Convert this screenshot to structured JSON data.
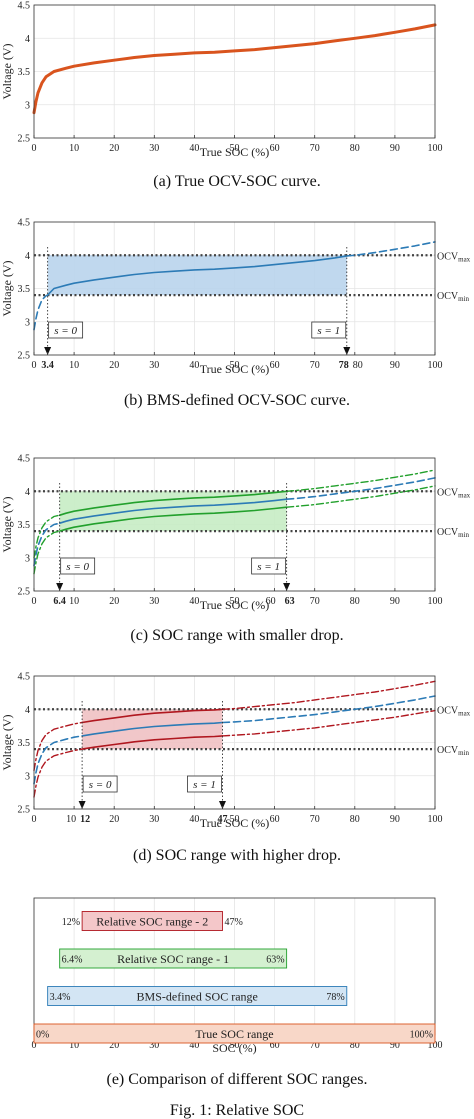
{
  "chart_data": [
    {
      "id": "a",
      "type": "line",
      "caption": "(a) True OCV-SOC curve.",
      "xlabel": "True SOC (%)",
      "ylabel": "Voltage (V)",
      "xlim": [
        0,
        100
      ],
      "ylim": [
        2.5,
        4.5
      ],
      "xticks": [
        "0",
        "10",
        "20",
        "30",
        "40",
        "50",
        "60",
        "70",
        "80",
        "90",
        "100"
      ],
      "yticks": [
        "2.5",
        "3",
        "3.5",
        "4",
        "4.5"
      ],
      "grid": true,
      "series": [
        {
          "style": "solid",
          "color": "#d9541e",
          "width": 3,
          "x": [
            0,
            0.5,
            1,
            2,
            3,
            5,
            8,
            10,
            15,
            20,
            25,
            30,
            35,
            40,
            45,
            50,
            55,
            60,
            65,
            70,
            75,
            80,
            85,
            90,
            95,
            100
          ],
          "y": [
            2.88,
            3.05,
            3.18,
            3.33,
            3.42,
            3.5,
            3.55,
            3.58,
            3.63,
            3.67,
            3.71,
            3.74,
            3.76,
            3.78,
            3.79,
            3.81,
            3.83,
            3.86,
            3.89,
            3.92,
            3.96,
            4.0,
            4.04,
            4.09,
            4.14,
            4.2
          ]
        }
      ]
    },
    {
      "id": "b",
      "type": "line",
      "caption": "(b) BMS-defined OCV-SOC curve.",
      "xlabel": "True SOC (%)",
      "ylabel": "Voltage (V)",
      "xlim": [
        0,
        100
      ],
      "ylim": [
        2.5,
        4.5
      ],
      "xticks": [
        "0",
        "3.4",
        "10",
        "20",
        "30",
        "40",
        "50",
        "60",
        "70",
        "78",
        "80",
        "90",
        "100"
      ],
      "xtick_values": [
        0,
        3.4,
        10,
        20,
        30,
        40,
        50,
        60,
        70,
        78,
        80,
        90,
        100
      ],
      "bold_ticks": [
        "3.4",
        "78"
      ],
      "yticks": [
        "2.5",
        "3",
        "3.5",
        "4",
        "4.5"
      ],
      "grid": true,
      "ocv_max_label": "OCVₘₐₓ",
      "ocv_min_label": "OCVₘᵢₙ",
      "ocv_max": 4.0,
      "ocv_min": 3.4,
      "shade": {
        "x": [
          3.4,
          78
        ],
        "y": [
          3.4,
          4.0
        ],
        "color": "#b9d4ec"
      },
      "markers": [
        {
          "label": "s = 0",
          "x": 3.4,
          "box_side": "right"
        },
        {
          "label": "s = 1",
          "x": 78,
          "box_side": "left"
        }
      ],
      "series": [
        {
          "style": "solid",
          "color": "#2c7bb6",
          "width": 1.6,
          "x": [
            3.4,
            5,
            8,
            10,
            15,
            20,
            25,
            30,
            35,
            40,
            45,
            50,
            55,
            60,
            65,
            70,
            75,
            78
          ],
          "y": [
            3.4,
            3.5,
            3.55,
            3.58,
            3.63,
            3.67,
            3.71,
            3.74,
            3.76,
            3.78,
            3.79,
            3.81,
            3.83,
            3.86,
            3.89,
            3.92,
            3.96,
            3.99
          ]
        },
        {
          "style": "dashed",
          "color": "#2c7bb6",
          "width": 1.6,
          "x": [
            0,
            0.5,
            1,
            2,
            3,
            3.4
          ],
          "y": [
            2.88,
            3.05,
            3.18,
            3.33,
            3.39,
            3.4
          ]
        },
        {
          "style": "dashed",
          "color": "#2c7bb6",
          "width": 1.6,
          "x": [
            78,
            80,
            85,
            90,
            95,
            100
          ],
          "y": [
            3.99,
            4.0,
            4.04,
            4.09,
            4.14,
            4.2
          ]
        }
      ]
    },
    {
      "id": "c",
      "type": "line",
      "caption": "(c) SOC range with smaller drop.",
      "xlabel": "True SOC (%)",
      "ylabel": "Voltage (V)",
      "xlim": [
        0,
        100
      ],
      "ylim": [
        2.5,
        4.5
      ],
      "xticks": [
        "0",
        "6.4",
        "10",
        "20",
        "30",
        "40",
        "50",
        "60",
        "63",
        "70",
        "80",
        "90",
        "100"
      ],
      "xtick_values": [
        0,
        6.4,
        10,
        20,
        30,
        40,
        50,
        60,
        63,
        70,
        80,
        90,
        100
      ],
      "bold_ticks": [
        "6.4",
        "63"
      ],
      "yticks": [
        "2.5",
        "3",
        "3.5",
        "4",
        "4.5"
      ],
      "grid": true,
      "ocv_max_label": "OCVₘₐₓ",
      "ocv_min_label": "OCVₘᵢₙ",
      "ocv_max": 4.0,
      "ocv_min": 3.4,
      "shade": {
        "x": [
          6.4,
          63
        ],
        "y": [
          3.4,
          4.0
        ],
        "color": "#c6ecc4"
      },
      "markers": [
        {
          "label": "s = 0",
          "x": 6.4,
          "box_side": "right"
        },
        {
          "label": "s = 1",
          "x": 63,
          "box_side": "left"
        }
      ],
      "series": [
        {
          "style": "solid",
          "color": "#2c7bb6",
          "width": 1.6,
          "x": [
            6.4,
            8,
            10,
            15,
            20,
            25,
            30,
            35,
            40,
            45,
            50,
            55,
            60,
            63
          ],
          "y": [
            3.52,
            3.55,
            3.58,
            3.63,
            3.67,
            3.71,
            3.74,
            3.76,
            3.78,
            3.79,
            3.81,
            3.83,
            3.86,
            3.88
          ]
        },
        {
          "style": "dashed",
          "color": "#2c7bb6",
          "width": 1.6,
          "x": [
            0,
            0.5,
            1,
            2,
            3,
            5,
            6.4
          ],
          "y": [
            2.88,
            3.05,
            3.18,
            3.33,
            3.42,
            3.5,
            3.52
          ]
        },
        {
          "style": "dashed",
          "color": "#2c7bb6",
          "width": 1.6,
          "x": [
            63,
            65,
            70,
            75,
            80,
            85,
            90,
            95,
            100
          ],
          "y": [
            3.88,
            3.89,
            3.92,
            3.96,
            4.0,
            4.04,
            4.09,
            4.14,
            4.2
          ]
        },
        {
          "style": "solid",
          "color": "#22a02c",
          "width": 1.6,
          "x": [
            6.4,
            8,
            10,
            15,
            20,
            25,
            30,
            35,
            40,
            45,
            50,
            55,
            60,
            63
          ],
          "y": [
            3.64,
            3.67,
            3.7,
            3.75,
            3.79,
            3.83,
            3.86,
            3.88,
            3.9,
            3.91,
            3.93,
            3.95,
            3.98,
            4.0
          ]
        },
        {
          "style": "dashdot",
          "color": "#22a02c",
          "width": 1.4,
          "x": [
            0,
            0.5,
            1,
            2,
            3,
            5,
            6.4
          ],
          "y": [
            3.0,
            3.17,
            3.3,
            3.45,
            3.54,
            3.62,
            3.64
          ]
        },
        {
          "style": "dashdot",
          "color": "#22a02c",
          "width": 1.4,
          "x": [
            63,
            65,
            70,
            75,
            80,
            85,
            90,
            95,
            100
          ],
          "y": [
            4.0,
            4.01,
            4.04,
            4.08,
            4.12,
            4.16,
            4.21,
            4.26,
            4.32
          ]
        },
        {
          "style": "solid",
          "color": "#22a02c",
          "width": 1.6,
          "x": [
            6.4,
            8,
            10,
            15,
            20,
            25,
            30,
            35,
            40,
            45,
            50,
            55,
            60,
            63
          ],
          "y": [
            3.4,
            3.43,
            3.46,
            3.51,
            3.55,
            3.59,
            3.62,
            3.64,
            3.66,
            3.67,
            3.69,
            3.71,
            3.74,
            3.76
          ]
        },
        {
          "style": "dashdot",
          "color": "#22a02c",
          "width": 1.4,
          "x": [
            0,
            0.5,
            1,
            2,
            3,
            5,
            6.4
          ],
          "y": [
            2.76,
            2.93,
            3.06,
            3.21,
            3.3,
            3.38,
            3.4
          ]
        },
        {
          "style": "dashdot",
          "color": "#22a02c",
          "width": 1.4,
          "x": [
            63,
            65,
            70,
            75,
            80,
            85,
            90,
            95,
            100
          ],
          "y": [
            3.76,
            3.77,
            3.8,
            3.84,
            3.88,
            3.92,
            3.97,
            4.02,
            4.08
          ]
        }
      ]
    },
    {
      "id": "d",
      "type": "line",
      "caption": "(d) SOC range with higher drop.",
      "xlabel": "True SOC (%)",
      "ylabel": "Voltage (V)",
      "xlim": [
        0,
        100
      ],
      "ylim": [
        2.5,
        4.5
      ],
      "xticks": [
        "0",
        "10",
        "12",
        "20",
        "30",
        "40",
        "47",
        "50",
        "60",
        "70",
        "80",
        "90",
        "100"
      ],
      "xtick_values": [
        0,
        10,
        12,
        20,
        30,
        40,
        47,
        50,
        60,
        70,
        80,
        90,
        100
      ],
      "bold_ticks": [
        "12",
        "47"
      ],
      "yticks": [
        "2.5",
        "3",
        "3.5",
        "4",
        "4.5"
      ],
      "grid": true,
      "ocv_max_label": "OCVₘₐₓ",
      "ocv_min_label": "OCVₘᵢₙ",
      "ocv_max": 4.0,
      "ocv_min": 3.4,
      "shade": {
        "x": [
          12,
          47
        ],
        "y": [
          3.4,
          4.0
        ],
        "color": "#f0c1c3"
      },
      "markers": [
        {
          "label": "s = 0",
          "x": 12,
          "box_side": "right"
        },
        {
          "label": "s = 1",
          "x": 47,
          "box_side": "left"
        }
      ],
      "series": [
        {
          "style": "solid",
          "color": "#2c7bb6",
          "width": 1.6,
          "x": [
            12,
            15,
            20,
            25,
            30,
            35,
            40,
            45,
            47
          ],
          "y": [
            3.6,
            3.63,
            3.67,
            3.71,
            3.74,
            3.76,
            3.78,
            3.79,
            3.8
          ]
        },
        {
          "style": "dashed",
          "color": "#2c7bb6",
          "width": 1.6,
          "x": [
            0,
            0.5,
            1,
            2,
            3,
            5,
            8,
            10,
            12
          ],
          "y": [
            2.88,
            3.05,
            3.18,
            3.33,
            3.42,
            3.5,
            3.55,
            3.58,
            3.6
          ]
        },
        {
          "style": "dashed",
          "color": "#2c7bb6",
          "width": 1.6,
          "x": [
            47,
            50,
            55,
            60,
            65,
            70,
            75,
            80,
            85,
            90,
            95,
            100
          ],
          "y": [
            3.8,
            3.81,
            3.83,
            3.86,
            3.89,
            3.92,
            3.96,
            4.0,
            4.04,
            4.09,
            4.14,
            4.2
          ]
        },
        {
          "style": "solid",
          "color": "#b0171f",
          "width": 1.6,
          "x": [
            12,
            15,
            20,
            25,
            30,
            35,
            40,
            45,
            47
          ],
          "y": [
            3.8,
            3.83,
            3.87,
            3.91,
            3.94,
            3.96,
            3.98,
            3.99,
            4.0
          ]
        },
        {
          "style": "dashdot",
          "color": "#b0171f",
          "width": 1.4,
          "x": [
            0,
            0.5,
            1,
            2,
            3,
            5,
            8,
            10,
            12
          ],
          "y": [
            3.08,
            3.25,
            3.38,
            3.53,
            3.62,
            3.7,
            3.75,
            3.78,
            3.8
          ]
        },
        {
          "style": "dashdot",
          "color": "#b0171f",
          "width": 1.4,
          "x": [
            47,
            50,
            55,
            60,
            65,
            70,
            75,
            80,
            85,
            90,
            95,
            100
          ],
          "y": [
            4.0,
            4.01,
            4.04,
            4.07,
            4.1,
            4.14,
            4.18,
            4.22,
            4.26,
            4.31,
            4.36,
            4.42
          ]
        },
        {
          "style": "solid",
          "color": "#b0171f",
          "width": 1.6,
          "x": [
            12,
            15,
            20,
            25,
            30,
            35,
            40,
            45,
            47
          ],
          "y": [
            3.4,
            3.43,
            3.47,
            3.51,
            3.54,
            3.56,
            3.58,
            3.59,
            3.6
          ]
        },
        {
          "style": "dashdot",
          "color": "#b0171f",
          "width": 1.4,
          "x": [
            0,
            0.5,
            1,
            2,
            3,
            5,
            8,
            10,
            12
          ],
          "y": [
            2.68,
            2.85,
            2.98,
            3.13,
            3.22,
            3.3,
            3.35,
            3.38,
            3.4
          ]
        },
        {
          "style": "dashdot",
          "color": "#b0171f",
          "width": 1.4,
          "x": [
            47,
            50,
            55,
            60,
            65,
            70,
            75,
            80,
            85,
            90,
            95,
            100
          ],
          "y": [
            3.6,
            3.61,
            3.63,
            3.66,
            3.69,
            3.72,
            3.76,
            3.8,
            3.84,
            3.88,
            3.93,
            3.98
          ]
        }
      ]
    },
    {
      "id": "e",
      "type": "bar",
      "orientation": "horizontal",
      "caption": "(e) Comparison of different SOC ranges.",
      "xlabel": "SOC (%)",
      "xlim": [
        0,
        100
      ],
      "xticks": [
        "0",
        "10",
        "20",
        "30",
        "40",
        "50",
        "60",
        "70",
        "80",
        "90",
        "100"
      ],
      "grid": true,
      "bars": [
        {
          "label": "Relative SOC range - 2",
          "start": 12,
          "end": 47,
          "start_label": "12%",
          "end_label": "47%",
          "fill": "#f4c7c9",
          "stroke": "#b0171f"
        },
        {
          "label": "Relative SOC range - 1",
          "start": 6.4,
          "end": 63,
          "start_label": "6.4%",
          "end_label": "63%",
          "fill": "#d4f0d0",
          "stroke": "#22a02c"
        },
        {
          "label": "BMS-defined SOC range",
          "start": 3.4,
          "end": 78,
          "start_label": "3.4%",
          "end_label": "78%",
          "fill": "#d3e5f4",
          "stroke": "#2c7bb6"
        },
        {
          "label": "True SOC range",
          "start": 0,
          "end": 100,
          "start_label": "0%",
          "end_label": "100%",
          "fill": "#f8d7c8",
          "stroke": "#d9541e"
        }
      ]
    }
  ],
  "footer": {
    "text": "Fig. 1: Relative SOC"
  }
}
